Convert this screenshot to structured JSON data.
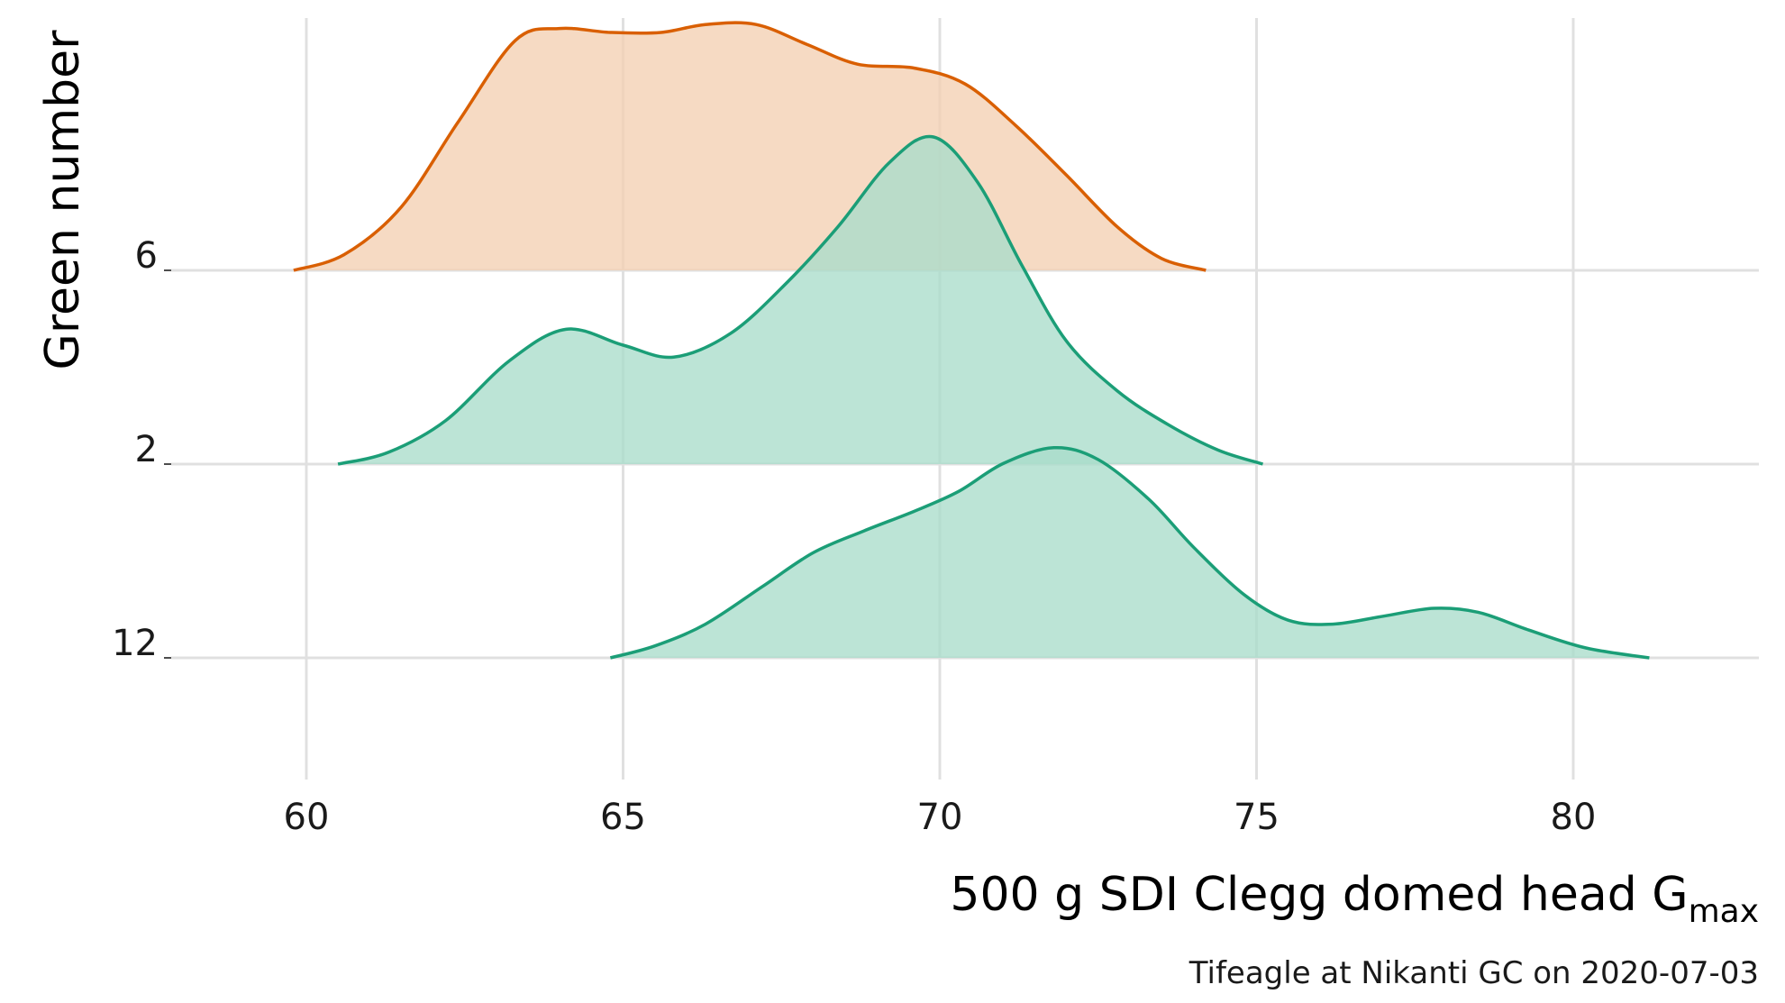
{
  "chart_data": {
    "type": "ridgeline",
    "xlabel_main": "500 g SDI Clegg domed head G",
    "xlabel_sub": "max",
    "ylabel": "Green number",
    "caption": "Tifeagle at Nikanti GC on 2020-07-03",
    "x_ticks": [
      60,
      65,
      70,
      75,
      80
    ],
    "x_tick_labels": [
      "60",
      "65",
      "70",
      "75",
      "80"
    ],
    "xlim": [
      58,
      83
    ],
    "grid": true,
    "density_scale_max": 1.0,
    "colors": {
      "orange_line": "#d95f02",
      "orange_fill": "#f3cfb2",
      "green_line": "#1b9e77",
      "green_fill": "#a9dccb"
    },
    "series": [
      {
        "name": "12",
        "line_color": "#1b9e77",
        "fill_color": "#a9dccb",
        "points": [
          [
            64.8,
            0.0
          ],
          [
            65.5,
            0.06
          ],
          [
            66.3,
            0.17
          ],
          [
            67.2,
            0.36
          ],
          [
            68.0,
            0.53
          ],
          [
            68.8,
            0.64
          ],
          [
            69.6,
            0.74
          ],
          [
            70.3,
            0.84
          ],
          [
            71.0,
            0.98
          ],
          [
            71.8,
            1.06
          ],
          [
            72.5,
            1.0
          ],
          [
            73.3,
            0.8
          ],
          [
            74.0,
            0.56
          ],
          [
            74.8,
            0.32
          ],
          [
            75.5,
            0.19
          ],
          [
            76.2,
            0.17
          ],
          [
            77.0,
            0.21
          ],
          [
            77.8,
            0.25
          ],
          [
            78.5,
            0.23
          ],
          [
            79.3,
            0.14
          ],
          [
            80.2,
            0.05
          ],
          [
            81.2,
            0.0
          ]
        ]
      },
      {
        "name": "2",
        "line_color": "#1b9e77",
        "fill_color": "#a9dccb",
        "points": [
          [
            60.5,
            0.0
          ],
          [
            61.3,
            0.06
          ],
          [
            62.2,
            0.22
          ],
          [
            63.2,
            0.52
          ],
          [
            64.1,
            0.68
          ],
          [
            65.0,
            0.6
          ],
          [
            65.8,
            0.54
          ],
          [
            66.7,
            0.66
          ],
          [
            67.6,
            0.92
          ],
          [
            68.4,
            1.2
          ],
          [
            69.2,
            1.52
          ],
          [
            69.9,
            1.65
          ],
          [
            70.6,
            1.42
          ],
          [
            71.3,
            1.0
          ],
          [
            72.0,
            0.62
          ],
          [
            72.8,
            0.37
          ],
          [
            73.6,
            0.2
          ],
          [
            74.4,
            0.07
          ],
          [
            75.1,
            0.0
          ]
        ]
      },
      {
        "name": "6",
        "line_color": "#d95f02",
        "fill_color": "#f3cfb2",
        "points": [
          [
            59.8,
            0.0
          ],
          [
            60.6,
            0.08
          ],
          [
            61.5,
            0.32
          ],
          [
            62.4,
            0.75
          ],
          [
            63.3,
            1.16
          ],
          [
            64.0,
            1.22
          ],
          [
            64.8,
            1.2
          ],
          [
            65.6,
            1.2
          ],
          [
            66.3,
            1.24
          ],
          [
            67.1,
            1.24
          ],
          [
            67.9,
            1.14
          ],
          [
            68.7,
            1.04
          ],
          [
            69.6,
            1.02
          ],
          [
            70.4,
            0.94
          ],
          [
            71.2,
            0.73
          ],
          [
            72.0,
            0.48
          ],
          [
            72.8,
            0.22
          ],
          [
            73.5,
            0.06
          ],
          [
            74.2,
            0.0
          ]
        ]
      }
    ]
  }
}
